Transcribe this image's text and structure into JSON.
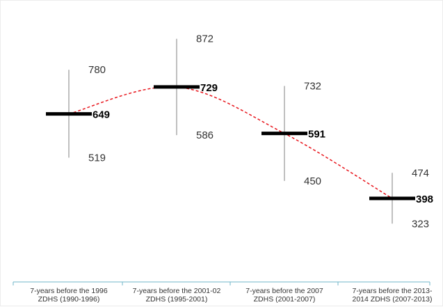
{
  "chart_data": {
    "type": "line",
    "title": "",
    "xlabel": "",
    "ylabel": "",
    "ylim": [
      150,
      950
    ],
    "grid": false,
    "categories": [
      [
        "7-years before the 1996",
        "ZDHS (1990-1996)"
      ],
      [
        "7-years before the 2001-02",
        "ZDHS (1995-2001)"
      ],
      [
        "7-years before the 2007",
        "ZDHS (2001-2007)"
      ],
      [
        "7-years before the 2013-",
        "2014 ZDHS (2007-2013)"
      ]
    ],
    "estimate": [
      649,
      729,
      591,
      398
    ],
    "upper": [
      780,
      872,
      732,
      474
    ],
    "lower": [
      519,
      586,
      450,
      323
    ],
    "trend_color": "#e8141b",
    "marker_color": "#000000",
    "axis_color": "#6fb5c9"
  }
}
